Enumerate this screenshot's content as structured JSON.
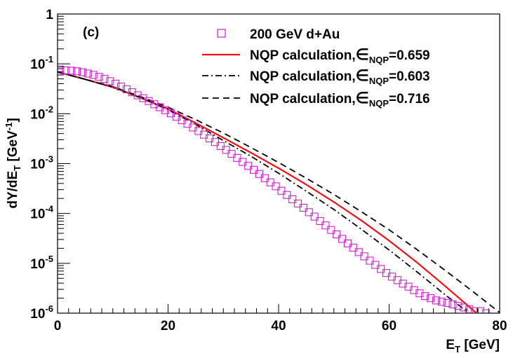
{
  "chart_data": {
    "type": "scatter",
    "panel_label": "(c)",
    "xlabel": "E_T [GeV]",
    "ylabel": "dY/dE_T [GeV^-1]",
    "xlim": [
      0,
      80
    ],
    "ylim": [
      1e-06,
      1
    ],
    "y_log": true,
    "grid": false,
    "legend_position": "top-right",
    "x_ticks": [
      {
        "value": 0,
        "label": "0"
      },
      {
        "value": 20,
        "label": "20"
      },
      {
        "value": 40,
        "label": "40"
      },
      {
        "value": 60,
        "label": "60"
      },
      {
        "value": 80,
        "label": "80"
      }
    ],
    "y_ticks": [
      {
        "value": 1,
        "base": "1",
        "exp": ""
      },
      {
        "value": 0.1,
        "base": "10",
        "exp": "-1"
      },
      {
        "value": 0.01,
        "base": "10",
        "exp": "-2"
      },
      {
        "value": 0.001,
        "base": "10",
        "exp": "-3"
      },
      {
        "value": 0.0001,
        "base": "10",
        "exp": "-4"
      },
      {
        "value": 1e-05,
        "base": "10",
        "exp": "-5"
      },
      {
        "value": 1e-06,
        "base": "10",
        "exp": "-6"
      }
    ],
    "series": [
      {
        "name": "200 GeV d+Au",
        "kind": "markers",
        "marker": "open-square",
        "color": "#cc22cc",
        "x": [
          0.5,
          1.5,
          2.5,
          3.5,
          4.5,
          5.5,
          6.5,
          7.5,
          8.5,
          9.5,
          10.5,
          11.5,
          12.5,
          13.5,
          14.5,
          15.5,
          16.5,
          17.5,
          18.5,
          19.5,
          20.5,
          21.5,
          22.5,
          23.5,
          24.5,
          25.5,
          26.5,
          27.5,
          28.5,
          29.5,
          30.5,
          31.5,
          32.5,
          33.5,
          34.5,
          35.5,
          36.5,
          37.5,
          38.5,
          39.5,
          40.5,
          41.5,
          42.5,
          43.5,
          44.5,
          45.5,
          46.5,
          47.5,
          48.5,
          49.5,
          50.5,
          51.5,
          52.5,
          53.5,
          54.5,
          55.5,
          56.5,
          57.5,
          58.5,
          59.5,
          60.5,
          61.5,
          62.5,
          63.5,
          64.5,
          65.5,
          66.5,
          67.5,
          68.5,
          69.5,
          70.5,
          71.5,
          72.5,
          73.5,
          74.5,
          75.5,
          76.5,
          77.5
        ],
        "y": [
          0.072,
          0.074,
          0.073,
          0.071,
          0.068,
          0.064,
          0.06,
          0.055,
          0.05,
          0.045,
          0.04,
          0.035,
          0.031,
          0.027,
          0.0235,
          0.0205,
          0.018,
          0.0155,
          0.0135,
          0.0118,
          0.0102,
          0.0087,
          0.0074,
          0.0063,
          0.0053,
          0.0045,
          0.0038,
          0.0032,
          0.0027,
          0.00225,
          0.00188,
          0.00157,
          0.0013,
          0.00108,
          0.0009,
          0.00075,
          0.00062,
          0.00051,
          0.00042,
          0.00035,
          0.000285,
          0.000235,
          0.000193,
          0.000158,
          0.00013,
          0.000106,
          8.65e-05,
          7.05e-05,
          5.75e-05,
          4.67e-05,
          3.8e-05,
          3.09e-05,
          2.51e-05,
          2.06e-05,
          1.68e-05,
          1.38e-05,
          1.13e-05,
          9.3e-06,
          7.7e-06,
          6.4e-06,
          5.4e-06,
          4.6e-06,
          3.9e-06,
          3.4e-06,
          2.9e-06,
          2.5e-06,
          2.2e-06,
          2e-06,
          1.8e-06,
          1.7e-06,
          1.6e-06,
          1.5e-06,
          1.4e-06,
          1.3e-06,
          1.2e-06,
          1.1e-06,
          1.1e-06,
          1e-06
        ]
      },
      {
        "name": "NQP calculation, ∈NQP=0.659",
        "label_text": "NQP calculation,",
        "param_symbol": "∈",
        "param_sub": "NQP",
        "param_value": "=0.659",
        "kind": "line",
        "dash": "solid",
        "color": "#ee1111",
        "x": [
          0,
          5,
          10,
          15,
          20,
          25,
          30,
          35,
          40,
          45,
          50,
          55,
          60,
          65,
          70,
          75,
          78
        ],
        "y": [
          0.069,
          0.049,
          0.034,
          0.021,
          0.0125,
          0.0065,
          0.0033,
          0.00165,
          0.00081,
          0.00038,
          0.00017,
          7.2e-05,
          2.85e-05,
          1.05e-05,
          3.6e-06,
          1.2e-06,
          6.2e-07
        ]
      },
      {
        "name": "NQP calculation, ∈NQP=0.603",
        "label_text": "NQP calculation,",
        "param_symbol": "∈",
        "param_sub": "NQP",
        "param_value": "=0.603",
        "kind": "line",
        "dash": "dashdot",
        "color": "#000000",
        "x": [
          0,
          5,
          10,
          15,
          20,
          25,
          30,
          35,
          40,
          45,
          50,
          55,
          60,
          65,
          70,
          75,
          79
        ],
        "y": [
          0.069,
          0.049,
          0.034,
          0.021,
          0.012,
          0.0061,
          0.0029,
          0.0014,
          0.00064,
          0.00028,
          0.00012,
          4.8e-05,
          1.85e-05,
          6.8e-06,
          2.4e-06,
          9e-07,
          4.2e-07
        ]
      },
      {
        "name": "NQP calculation, ∈NQP=0.716",
        "label_text": "NQP calculation,",
        "param_symbol": "∈",
        "param_sub": "NQP",
        "param_value": "=0.716",
        "kind": "line",
        "dash": "dashed",
        "color": "#000000",
        "x": [
          0,
          5,
          10,
          15,
          20,
          25,
          30,
          35,
          40,
          45,
          50,
          55,
          60,
          65,
          70,
          75,
          80
        ],
        "y": [
          0.069,
          0.049,
          0.035,
          0.022,
          0.0135,
          0.0076,
          0.0041,
          0.0021,
          0.00105,
          0.00051,
          0.00024,
          0.000108,
          4.7e-05,
          1.9e-05,
          7.4e-06,
          2.8e-06,
          1.03e-06
        ]
      }
    ]
  }
}
